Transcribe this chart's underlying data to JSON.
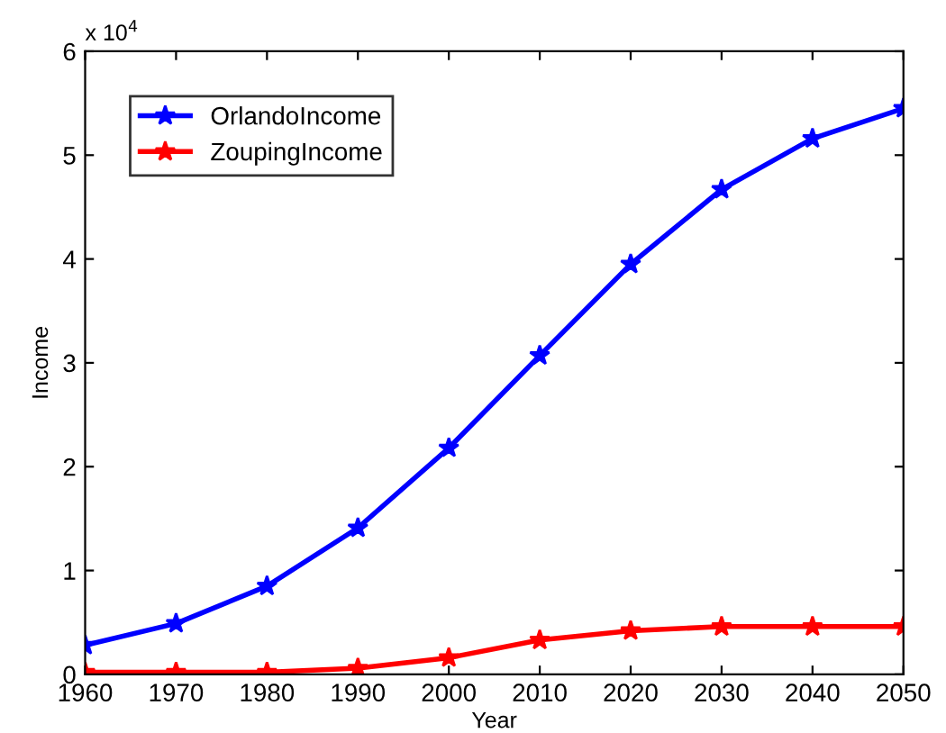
{
  "chart_data": {
    "type": "line",
    "xlabel": "Year",
    "ylabel": "Income",
    "x": [
      1960,
      1970,
      1980,
      1990,
      2000,
      2010,
      2020,
      2030,
      2040,
      2050
    ],
    "series": [
      {
        "name": "OrlandoIncome",
        "color": "#0000ff",
        "values": [
          0.28,
          0.49,
          0.85,
          1.41,
          2.18,
          3.07,
          3.95,
          4.67,
          5.16,
          5.45
        ]
      },
      {
        "name": "ZoupingIncome",
        "color": "#ff0000",
        "values": [
          0.02,
          0.02,
          0.02,
          0.06,
          0.16,
          0.33,
          0.42,
          0.46,
          0.46,
          0.46
        ]
      }
    ],
    "xlim": [
      1960,
      2050
    ],
    "ylim": [
      0,
      6
    ],
    "xticks": [
      1960,
      1970,
      1980,
      1990,
      2000,
      2010,
      2020,
      2030,
      2040,
      2050
    ],
    "yticks": [
      0,
      1,
      2,
      3,
      4,
      5,
      6
    ],
    "annotations": [
      "x 10$^{4}$"
    ],
    "marker": "star",
    "line_style": "solid",
    "legend": "top left",
    "grid": false
  }
}
